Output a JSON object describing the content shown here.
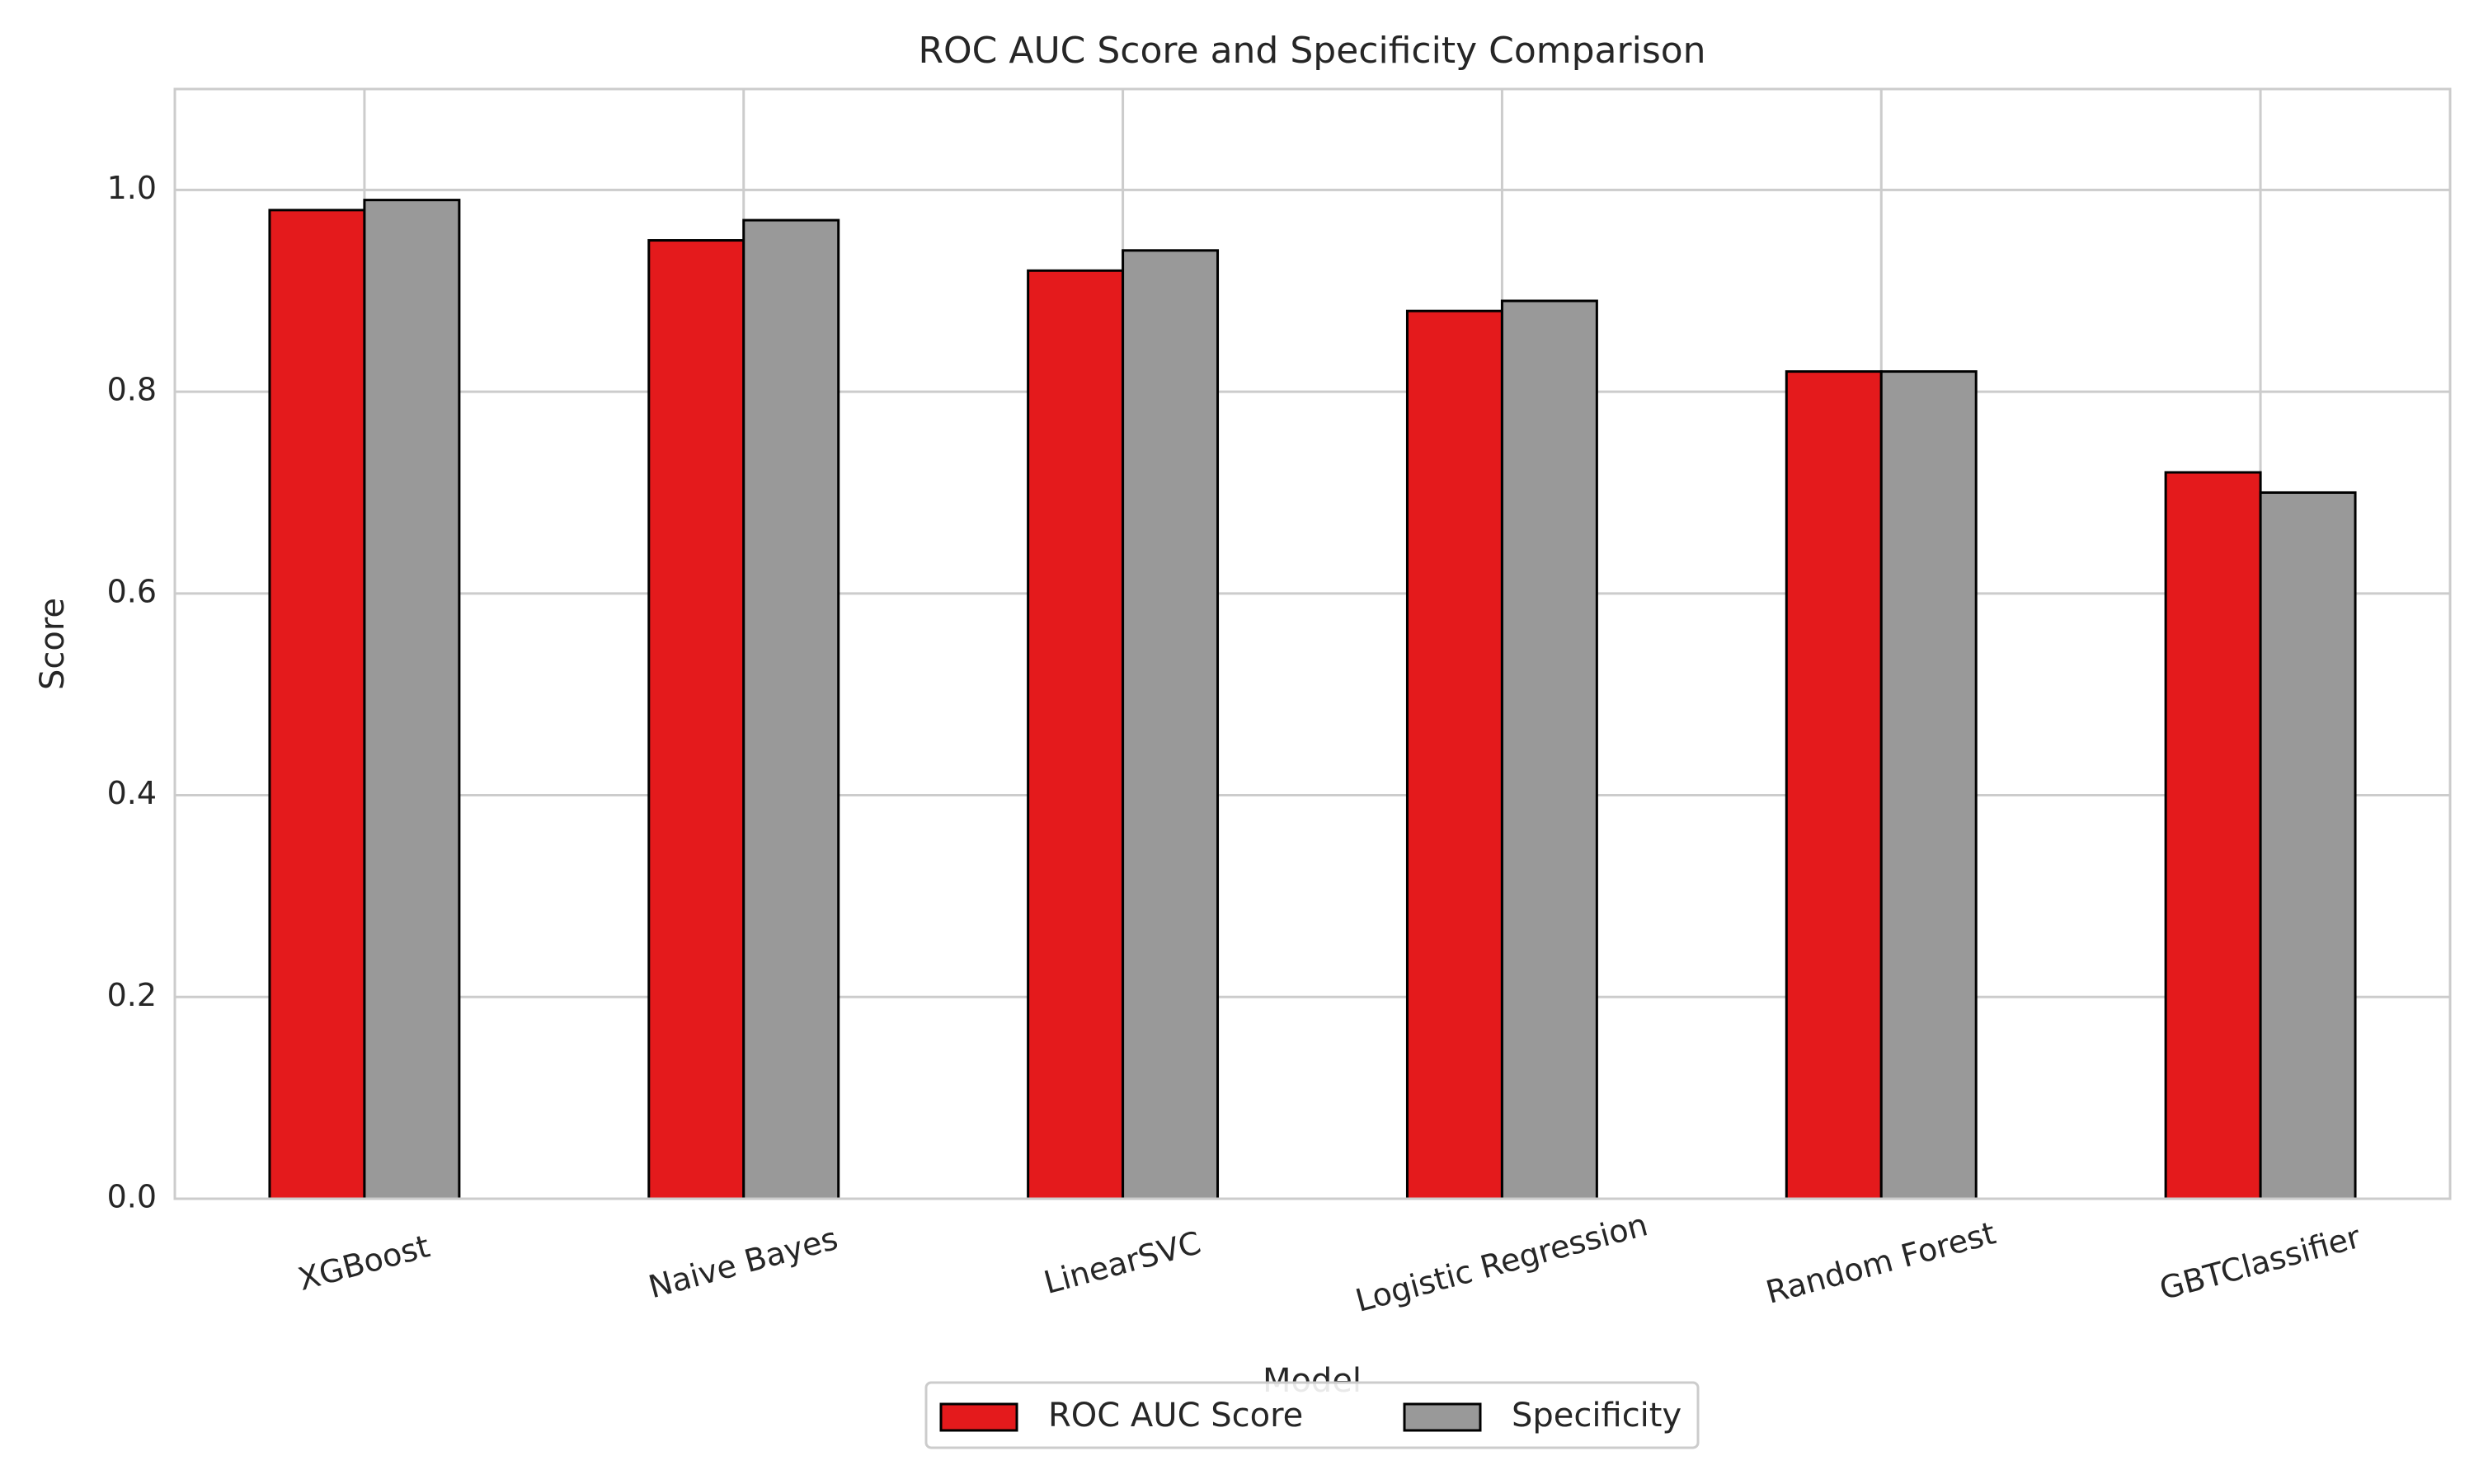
{
  "chart_data": {
    "type": "bar",
    "title": "ROC AUC Score and Specificity Comparison",
    "xlabel": "Model",
    "ylabel": "Score",
    "categories": [
      "XGBoost",
      "Naive Bayes",
      "LinearSVC",
      "Logistic Regression",
      "Random Forest",
      "GBTClassifier"
    ],
    "series": [
      {
        "name": "ROC AUC Score",
        "color": "#e41a1c",
        "values": [
          0.98,
          0.95,
          0.92,
          0.88,
          0.82,
          0.72
        ]
      },
      {
        "name": "Specificity",
        "color": "#999999",
        "values": [
          0.99,
          0.97,
          0.94,
          0.89,
          0.82,
          0.7
        ]
      }
    ],
    "ylim": [
      0,
      1.1
    ],
    "yticks": [
      {
        "value": 0,
        "label": "0.0"
      },
      0.2,
      0.4,
      0.6,
      0.8,
      {
        "value": 1,
        "label": "1.0"
      }
    ],
    "grid": true,
    "legend": "lower center"
  }
}
